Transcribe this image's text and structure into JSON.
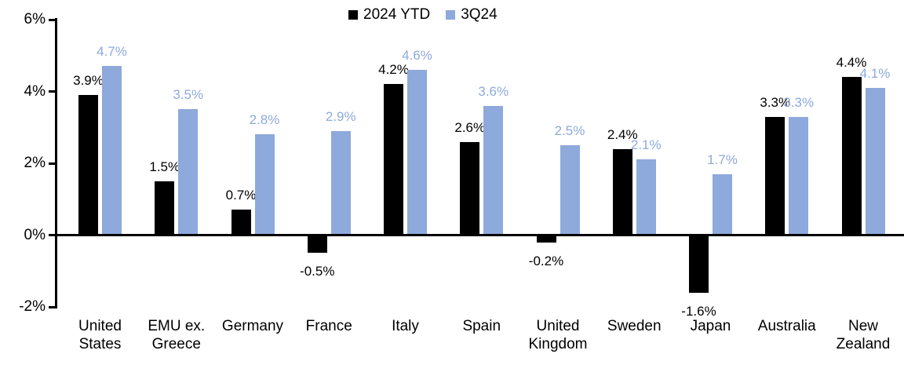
{
  "chart_data": {
    "type": "bar",
    "title": "",
    "categories": [
      "United\nStates",
      "EMU ex.\nGreece",
      "Germany",
      "France",
      "Italy",
      "Spain",
      "United\nKingdom",
      "Sweden",
      "Japan",
      "Australia",
      "New\nZealand"
    ],
    "series": [
      {
        "name": "2024 YTD",
        "color": "#000000",
        "values": [
          3.9,
          1.5,
          0.7,
          -0.5,
          4.2,
          2.6,
          -0.2,
          2.4,
          -1.6,
          3.3,
          4.4
        ],
        "labels": [
          "3.9%",
          "1.5%",
          "0.7%",
          "-0.5%",
          "4.2%",
          "2.6%",
          "-0.2%",
          "2.4%",
          "-1.6%",
          "3.3%",
          "4.4%"
        ]
      },
      {
        "name": "3Q24",
        "color": "#8EA9DB",
        "values": [
          4.7,
          3.5,
          2.8,
          2.9,
          4.6,
          3.6,
          2.5,
          2.1,
          1.7,
          3.3,
          4.1
        ],
        "labels": [
          "4.7%",
          "3.5%",
          "2.8%",
          "2.9%",
          "4.6%",
          "3.6%",
          "2.5%",
          "2.1%",
          "1.7%",
          "3.3%",
          "4.1%"
        ]
      }
    ],
    "y_axis": {
      "min": -2,
      "max": 6,
      "tick_step": 2,
      "ticks": [
        {
          "value": 6,
          "label": "6%"
        },
        {
          "value": 4,
          "label": "4%"
        },
        {
          "value": 2,
          "label": "2%"
        },
        {
          "value": 0,
          "label": "0%"
        },
        {
          "value": -2,
          "label": "-2%"
        }
      ]
    },
    "legend": {
      "position": "top-center",
      "entries": [
        "2024 YTD",
        "3Q24"
      ]
    },
    "grid": false,
    "axis_color": "#000000"
  }
}
